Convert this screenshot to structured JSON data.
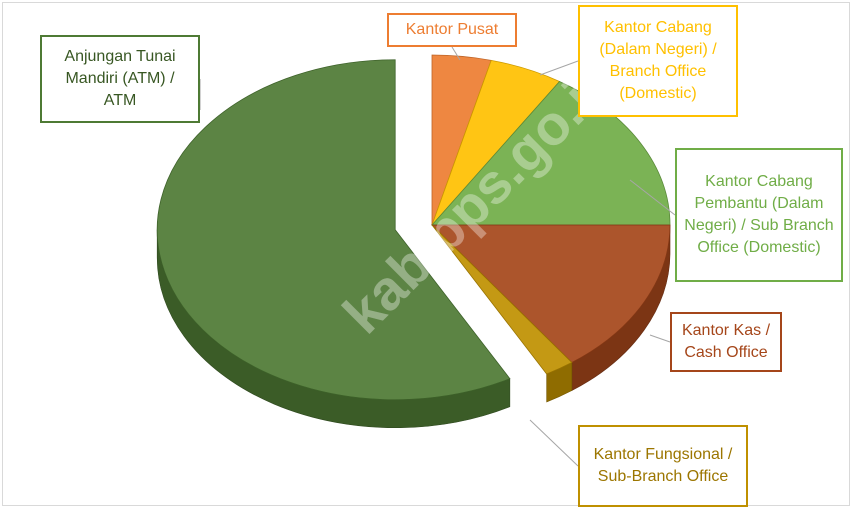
{
  "chart_data": {
    "type": "pie3d",
    "categories": [
      "Kantor Pusat",
      "Kantor Cabang (Dalam Negeri) / Branch Office (Domestic)",
      "Kantor Cabang Pembantu (Dalam Negeri) / Sub Branch Office (Domestic)",
      "Kantor Kas / Cash Office",
      "Kantor Fungsional / Sub-Branch Office",
      "Anjungan Tunai Mandiri (ATM) / ATM"
    ],
    "values": [
      4,
      5,
      16,
      15,
      2,
      58
    ],
    "colors": [
      "#ed7d31",
      "#ffc000",
      "#70ad47",
      "#a5461a",
      "#bf9000",
      "#4e7a34"
    ],
    "watermark": "kab.bps.go.id"
  }
}
